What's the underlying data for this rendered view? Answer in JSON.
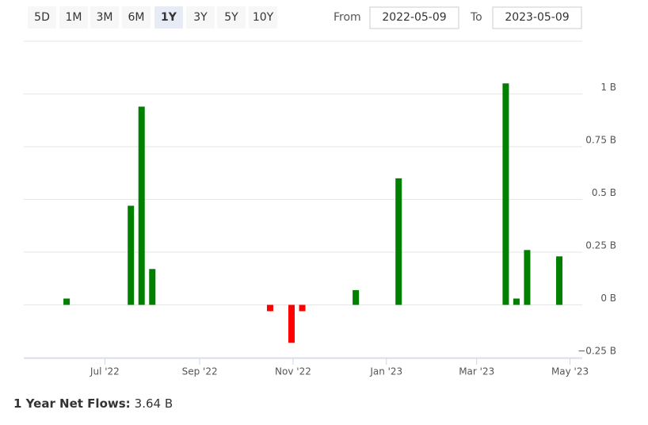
{
  "controls": {
    "ranges": [
      "5D",
      "1M",
      "3M",
      "6M",
      "1Y",
      "3Y",
      "5Y",
      "10Y"
    ],
    "selected": 4,
    "from_label": "From",
    "from": "2022-05-09",
    "to_label": "To",
    "to": "2023-05-09"
  },
  "chart_data": {
    "type": "bar",
    "x": [
      "2022-06-06",
      "2022-07-18",
      "2022-07-25",
      "2022-08-01",
      "2022-10-17",
      "2022-10-31",
      "2022-11-07",
      "2022-12-12",
      "2023-01-09",
      "2023-03-20",
      "2023-03-27",
      "2023-04-03",
      "2023-04-24"
    ],
    "series": [
      {
        "color": "#008000",
        "negative_color": "#ff0000",
        "values": [
          0.03,
          0.47,
          0.94,
          0.17,
          -0.03,
          -0.18,
          -0.03,
          0.07,
          0.6,
          1.05,
          0.03,
          0.26,
          0.23
        ]
      }
    ],
    "xlim": [
      "2022-05-09",
      "2023-05-09"
    ],
    "xticks": [
      {
        "value": "2022-07-01",
        "label": "Jul '22"
      },
      {
        "value": "2022-09-01",
        "label": "Sep '22"
      },
      {
        "value": "2022-11-01",
        "label": "Nov '22"
      },
      {
        "value": "2023-01-01",
        "label": "Jan '23"
      },
      {
        "value": "2023-03-01",
        "label": "Mar '23"
      },
      {
        "value": "2023-05-01",
        "label": "May '23"
      }
    ],
    "ylim": [
      -0.25,
      1.25
    ],
    "yticks": [
      {
        "value": -0.25,
        "label": "−0.25 B"
      },
      {
        "value": 0,
        "label": "0 B"
      },
      {
        "value": 0.25,
        "label": "0.25 B"
      },
      {
        "value": 0.5,
        "label": "0.5 B"
      },
      {
        "value": 0.75,
        "label": "0.75 B"
      },
      {
        "value": 1,
        "label": "1 B"
      }
    ],
    "grid": true
  },
  "summary": {
    "label": "1 Year Net Flows:",
    "value": "3.64 B"
  }
}
